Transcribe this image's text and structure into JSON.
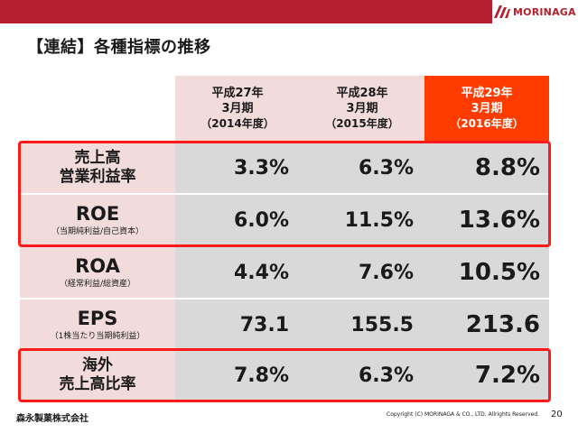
{
  "header": {
    "brand": "MORINAGA",
    "accent_color": "#b51f2e"
  },
  "title": "【連結】各種指標の推移",
  "columns": [
    {
      "line1": "平成27年",
      "line2": "3月期",
      "line3": "（2014年度）"
    },
    {
      "line1": "平成28年",
      "line2": "3月期",
      "line3": "（2015年度）"
    },
    {
      "line1": "平成29年",
      "line2": "3月期",
      "line3": "（2016年度）"
    }
  ],
  "rows": [
    {
      "label_line1": "売上高",
      "label_line2": "営業利益率",
      "label_sub": "",
      "values": [
        "3.3%",
        "6.3%",
        "8.8%"
      ]
    },
    {
      "label_line1": "ROE",
      "label_line2": "",
      "label_sub": "（当期純利益/自己資本）",
      "values": [
        "6.0%",
        "11.5%",
        "13.6%"
      ]
    },
    {
      "label_line1": "ROA",
      "label_line2": "",
      "label_sub": "（経常利益/総資産）",
      "values": [
        "4.4%",
        "7.6%",
        "10.5%"
      ]
    },
    {
      "label_line1": "EPS",
      "label_line2": "",
      "label_sub": "（1株当たり当期純利益）",
      "values": [
        "73.1",
        "155.5",
        "213.6"
      ]
    },
    {
      "label_line1": "海外",
      "label_line2": "売上高比率",
      "label_sub": "",
      "values": [
        "7.8%",
        "6.3%",
        "7.2%"
      ]
    }
  ],
  "highlight_color": "#ff1a1a",
  "current_year_color": "#ff3b00",
  "footer": {
    "company": "森永製菓株式会社",
    "copyright": "Copyright (C) MORINAGA & CO., LTD. Allrights Reserved.",
    "page": "20"
  }
}
